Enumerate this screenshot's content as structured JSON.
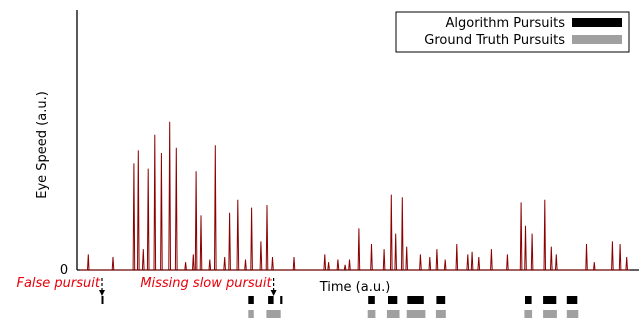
{
  "chart_data": {
    "type": "line",
    "xlabel": "Time (a.u.)",
    "ylabel": "Eye Speed (a.u.)",
    "y_tick_labels": [
      "0"
    ],
    "ylim": [
      0,
      100
    ],
    "xlim": [
      0,
      100
    ],
    "grid": false,
    "legend_position": "top-right",
    "legend": [
      {
        "label": "Algorithm Pursuits",
        "color": "#000000"
      },
      {
        "label": "Ground Truth Pursuits",
        "color": "#a0a0a0"
      }
    ],
    "colors": {
      "signal": "#8b0000",
      "annotation": "#e8000b",
      "algorithm": "#000000",
      "ground_truth": "#a0a0a0"
    },
    "series": [
      {
        "values": [
          [
            1.5,
            6
          ],
          [
            6,
            5
          ],
          [
            9.8,
            41
          ],
          [
            10.6,
            46
          ],
          [
            11.5,
            8
          ],
          [
            12.4,
            39
          ],
          [
            13.6,
            52
          ],
          [
            14.8,
            45
          ],
          [
            16.3,
            57
          ],
          [
            17.5,
            47
          ],
          [
            19.2,
            3
          ],
          [
            20.6,
            6
          ],
          [
            21.1,
            38
          ],
          [
            22,
            21
          ],
          [
            23.6,
            4
          ],
          [
            24.6,
            48
          ],
          [
            26.3,
            5
          ],
          [
            27.2,
            22
          ],
          [
            28.7,
            27
          ],
          [
            30.1,
            4
          ],
          [
            31.2,
            24
          ],
          [
            32.9,
            11
          ],
          [
            34,
            25
          ],
          [
            35,
            5
          ],
          [
            38.9,
            5
          ],
          [
            44.5,
            6
          ],
          [
            45.2,
            3
          ],
          [
            46.9,
            4
          ],
          [
            48.2,
            2
          ],
          [
            49,
            4
          ],
          [
            50.7,
            16
          ],
          [
            53,
            10
          ],
          [
            55.3,
            8
          ],
          [
            56.6,
            29
          ],
          [
            57.4,
            14
          ],
          [
            58.6,
            28
          ],
          [
            59.4,
            9
          ],
          [
            61.9,
            6
          ],
          [
            63.6,
            5
          ],
          [
            64.9,
            8
          ],
          [
            66.4,
            4
          ],
          [
            68.5,
            10
          ],
          [
            70.5,
            6
          ],
          [
            71.3,
            7
          ],
          [
            72.5,
            5
          ],
          [
            74.8,
            8
          ],
          [
            77.7,
            6
          ],
          [
            80.2,
            26
          ],
          [
            81,
            17
          ],
          [
            82.2,
            14
          ],
          [
            84.5,
            27
          ],
          [
            85.7,
            9
          ],
          [
            86.6,
            6
          ],
          [
            92.1,
            10
          ],
          [
            93.5,
            3
          ],
          [
            96.8,
            11
          ],
          [
            98.2,
            10
          ],
          [
            99.4,
            5
          ]
        ]
      }
    ],
    "algorithm_pursuits": [
      [
        3.9,
        4.1
      ],
      [
        30.6,
        31.6
      ],
      [
        34.2,
        35.2
      ],
      [
        36.4,
        36.8
      ],
      [
        52.4,
        53.6
      ],
      [
        56,
        57.7
      ],
      [
        59.5,
        62.5
      ],
      [
        64.8,
        66.4
      ],
      [
        80.9,
        82.1
      ],
      [
        84.2,
        86.6
      ],
      [
        88.5,
        90.4
      ]
    ],
    "ground_truth_pursuits": [
      [
        30.6,
        31.6
      ],
      [
        33.9,
        36.5
      ],
      [
        52.3,
        53.7
      ],
      [
        55.8,
        58.1
      ],
      [
        59.4,
        62.8
      ],
      [
        64.7,
        66.5
      ],
      [
        80.8,
        82.2
      ],
      [
        84.2,
        86.7
      ],
      [
        88.5,
        90.6
      ]
    ],
    "annotations": [
      {
        "label": "False pursuit",
        "x": 4.0
      },
      {
        "label": "Missing slow pursuit",
        "x": 35.2
      }
    ]
  }
}
